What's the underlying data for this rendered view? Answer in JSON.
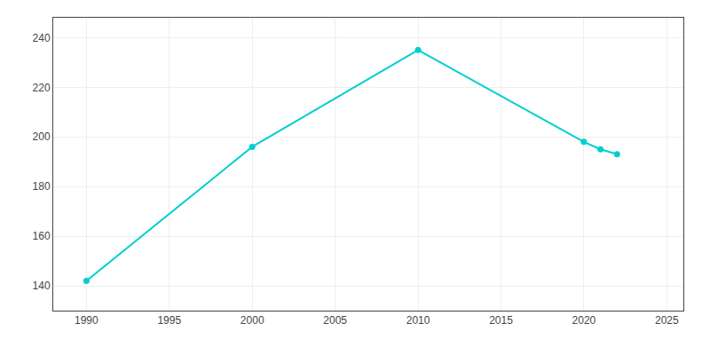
{
  "chart_data": {
    "type": "line",
    "x": [
      1990,
      2000,
      2010,
      2020,
      2021,
      2022
    ],
    "values": [
      142,
      196,
      235,
      198,
      195,
      193
    ],
    "color": "#00CED1",
    "marker": "circle",
    "xlim": [
      1988,
      2026
    ],
    "ylim": [
      130,
      248
    ],
    "xticks": [
      1990,
      1995,
      2000,
      2005,
      2010,
      2015,
      2020,
      2025
    ],
    "yticks": [
      140,
      160,
      180,
      200,
      220,
      240
    ],
    "grid": true
  }
}
